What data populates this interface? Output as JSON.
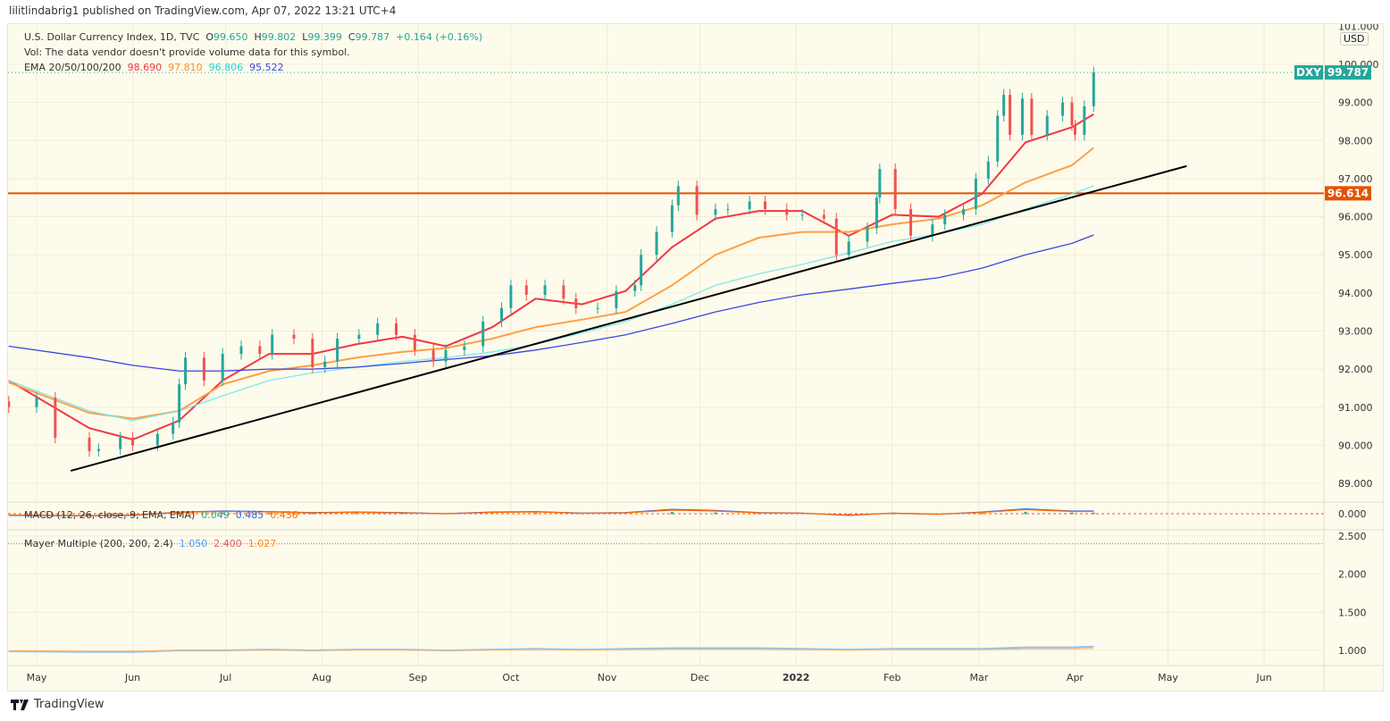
{
  "header": {
    "published": "lilitlindabrig1 published on TradingView.com, Apr 07, 2022 13:21 UTC+4"
  },
  "legend": {
    "symbol": "U.S. Dollar Currency Index, 1D, TVC",
    "open_label": "O",
    "open": "99.650",
    "high_label": "H",
    "high": "99.802",
    "low_label": "L",
    "low": "99.399",
    "close_label": "C",
    "close": "99.787",
    "change": "+0.164 (+0.16%)",
    "vol_note": "Vol: The data vendor doesn't provide volume data for this symbol.",
    "ema_label": "EMA 20/50/100/200",
    "ema_values": [
      "98.690",
      "97.810",
      "96.806",
      "95.522"
    ],
    "macd_label": "MACD (12, 26, close, 9, EMA, EMA)",
    "macd_values": [
      "0.049",
      "0.485",
      "0.436"
    ],
    "mayer_label": "Mayer Multiple (200, 200, 2.4)",
    "mayer_values": [
      "1.050",
      "2.400",
      "1.027"
    ]
  },
  "price_axis": {
    "currency": "USD",
    "ticks": [
      "101.000",
      "100.000",
      "99.000",
      "98.000",
      "97.000",
      "96.000",
      "95.000",
      "94.000",
      "93.000",
      "92.000",
      "91.000",
      "90.000",
      "89.000"
    ]
  },
  "macd_axis": {
    "ticks": [
      "0.000"
    ]
  },
  "mayer_axis": {
    "ticks": [
      "2.500",
      "2.000",
      "1.500",
      "1.000"
    ]
  },
  "time_axis": {
    "labels": [
      "May",
      "Jun",
      "Jul",
      "Aug",
      "Sep",
      "Oct",
      "Nov",
      "Dec",
      "2022",
      "Feb",
      "Mar",
      "Apr",
      "May",
      "Jun"
    ]
  },
  "tags": {
    "symbol": "DXY",
    "last_price": "99.787",
    "level": "96.614"
  },
  "footer": {
    "brand": "TradingView"
  },
  "colors": {
    "up": "#26a69a",
    "down": "#ef5350",
    "ema20": "#f23645",
    "ema50": "#ff9f43",
    "ema100": "#7fe8f0",
    "ema200": "#3d46e0",
    "level": "#e65100",
    "trendline": "#000000",
    "background": "#fdfbec"
  },
  "chart_data": {
    "type": "candlestick",
    "price_range": [
      88.6,
      101.0
    ],
    "candles": {
      "dates": [
        "2021-04-22",
        "2021-05-01",
        "2021-05-07",
        "2021-05-18",
        "2021-05-21",
        "2021-05-28",
        "2021-06-01",
        "2021-06-09",
        "2021-06-14",
        "2021-06-16",
        "2021-06-18",
        "2021-06-24",
        "2021-06-30",
        "2021-07-06",
        "2021-07-12",
        "2021-07-16",
        "2021-07-23",
        "2021-07-29",
        "2021-08-02",
        "2021-08-06",
        "2021-08-13",
        "2021-08-19",
        "2021-08-25",
        "2021-08-31",
        "2021-09-06",
        "2021-09-10",
        "2021-09-16",
        "2021-09-22",
        "2021-09-28",
        "2021-10-01",
        "2021-10-06",
        "2021-10-12",
        "2021-10-18",
        "2021-10-22",
        "2021-10-29",
        "2021-11-04",
        "2021-11-10",
        "2021-11-12",
        "2021-11-17",
        "2021-11-22",
        "2021-11-24",
        "2021-11-30",
        "2021-12-06",
        "2021-12-10",
        "2021-12-17",
        "2021-12-22",
        "2021-12-29",
        "2022-01-03",
        "2022-01-10",
        "2022-01-14",
        "2022-01-18",
        "2022-01-24",
        "2022-01-27",
        "2022-01-28",
        "2022-02-02",
        "2022-02-07",
        "2022-02-14",
        "2022-02-18",
        "2022-02-24",
        "2022-02-28",
        "2022-03-04",
        "2022-03-07",
        "2022-03-09",
        "2022-03-11",
        "2022-03-15",
        "2022-03-18",
        "2022-03-23",
        "2022-03-28",
        "2022-03-31",
        "2022-04-01",
        "2022-04-04",
        "2022-04-07"
      ],
      "close": [
        91.0,
        91.25,
        90.2,
        89.85,
        89.9,
        90.2,
        90.0,
        90.3,
        90.6,
        91.6,
        92.3,
        91.7,
        92.4,
        92.6,
        92.4,
        92.9,
        92.8,
        92.05,
        92.2,
        92.8,
        92.9,
        93.2,
        92.9,
        92.5,
        92.2,
        92.5,
        92.6,
        93.25,
        93.6,
        94.2,
        93.95,
        94.2,
        93.85,
        93.6,
        93.6,
        94.05,
        94.2,
        95.0,
        95.6,
        96.3,
        96.8,
        96.05,
        96.2,
        96.2,
        96.4,
        96.2,
        96.05,
        96.05,
        95.95,
        95.0,
        95.35,
        95.7,
        96.5,
        97.25,
        96.2,
        95.5,
        95.8,
        96.05,
        96.2,
        97.0,
        97.45,
        98.65,
        99.2,
        98.15,
        99.1,
        98.15,
        98.65,
        99.0,
        98.4,
        98.15,
        98.9,
        99.787
      ]
    },
    "indicators_dates": [
      "2021-04-22",
      "2021-05-18",
      "2021-06-01",
      "2021-06-16",
      "2021-06-30",
      "2021-07-15",
      "2021-07-29",
      "2021-08-12",
      "2021-08-27",
      "2021-09-10",
      "2021-09-25",
      "2021-10-09",
      "2021-10-24",
      "2021-11-07",
      "2021-11-22",
      "2021-12-06",
      "2021-12-20",
      "2022-01-03",
      "2022-01-18",
      "2022-02-01",
      "2022-02-16",
      "2022-03-02",
      "2022-03-16",
      "2022-03-31",
      "2022-04-07"
    ],
    "series": [
      {
        "name": "EMA 20",
        "values": [
          91.7,
          90.45,
          90.15,
          90.65,
          91.7,
          92.4,
          92.4,
          92.65,
          92.85,
          92.6,
          93.1,
          93.85,
          93.7,
          94.05,
          95.2,
          95.95,
          96.15,
          96.15,
          95.5,
          96.05,
          96.0,
          96.6,
          97.95,
          98.35,
          98.69
        ]
      },
      {
        "name": "EMA 50",
        "values": [
          91.65,
          90.85,
          90.7,
          90.9,
          91.6,
          91.95,
          92.1,
          92.3,
          92.45,
          92.55,
          92.8,
          93.1,
          93.3,
          93.5,
          94.2,
          95.0,
          95.45,
          95.6,
          95.6,
          95.8,
          95.95,
          96.3,
          96.9,
          97.35,
          97.81
        ]
      },
      {
        "name": "EMA 100",
        "values": [
          91.7,
          90.9,
          90.65,
          90.9,
          91.3,
          91.7,
          91.9,
          92.05,
          92.2,
          92.3,
          92.45,
          92.65,
          92.95,
          93.25,
          93.7,
          94.2,
          94.5,
          94.75,
          95.05,
          95.35,
          95.55,
          95.8,
          96.2,
          96.6,
          96.81
        ]
      },
      {
        "name": "EMA 200",
        "values": [
          92.6,
          92.3,
          92.1,
          91.95,
          91.95,
          92.0,
          92.0,
          92.05,
          92.15,
          92.25,
          92.35,
          92.5,
          92.7,
          92.9,
          93.2,
          93.5,
          93.75,
          93.95,
          94.1,
          94.25,
          94.4,
          94.65,
          95.0,
          95.3,
          95.52
        ]
      }
    ],
    "macd": [
      -0.3,
      -0.4,
      -0.3,
      0.3,
      0.5,
      0.4,
      0.2,
      0.3,
      0.2,
      0.0,
      0.3,
      0.4,
      0.1,
      0.2,
      0.8,
      0.6,
      0.2,
      0.1,
      -0.3,
      0.1,
      -0.1,
      0.3,
      0.9,
      0.5,
      0.49
    ],
    "mayer_multiple": [
      0.99,
      0.98,
      0.98,
      1.0,
      1.0,
      1.01,
      1.0,
      1.01,
      1.01,
      1.0,
      1.01,
      1.02,
      1.01,
      1.02,
      1.03,
      1.03,
      1.03,
      1.02,
      1.01,
      1.02,
      1.02,
      1.02,
      1.04,
      1.04,
      1.05
    ],
    "mayer_range": [
      0.8,
      2.6
    ],
    "horizontal_level": 96.614,
    "trendline": {
      "from": [
        "2021-05-12",
        89.33
      ],
      "to": [
        "2022-05-07",
        97.33
      ]
    }
  }
}
